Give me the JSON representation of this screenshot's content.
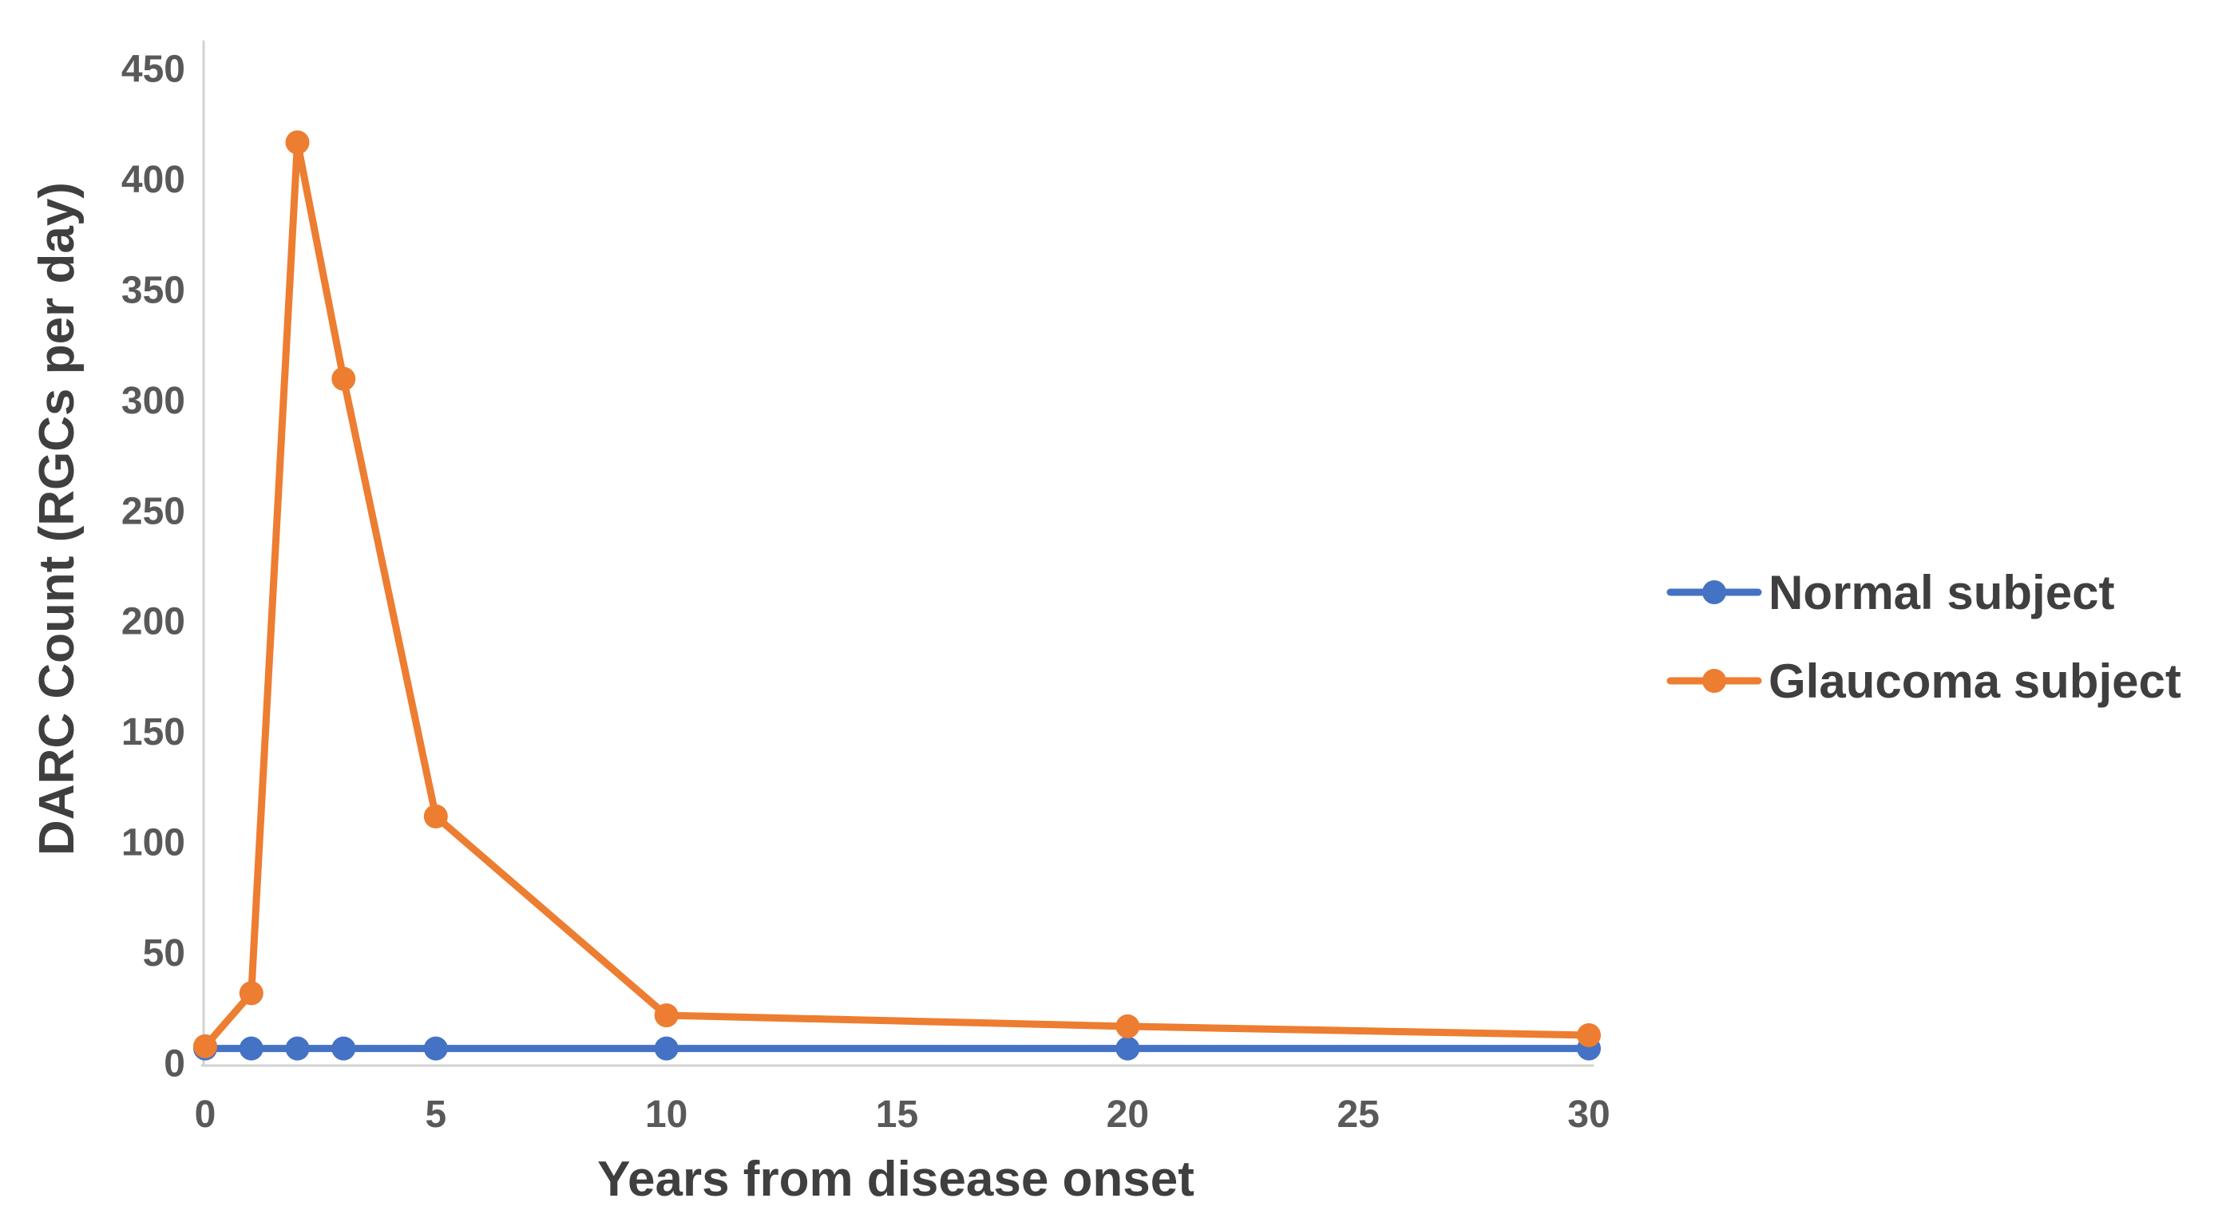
{
  "chart_data": {
    "type": "line",
    "x": [
      0,
      1,
      2,
      3,
      5,
      10,
      20,
      30
    ],
    "series": [
      {
        "name": "Normal subject",
        "color": "#4472C4",
        "values": [
          7,
          7,
          7,
          7,
          7,
          7,
          7,
          7
        ]
      },
      {
        "name": "Glaucoma subject",
        "color": "#ED7D31",
        "values": [
          8,
          32,
          417,
          310,
          112,
          22,
          17,
          13
        ]
      }
    ],
    "title": "",
    "xlabel": "Years from disease onset",
    "ylabel": "DARC Count (RGCs per day)",
    "xlim": [
      0,
      30
    ],
    "ylim": [
      0,
      450
    ],
    "xticks": [
      0,
      5,
      10,
      15,
      20,
      25,
      30
    ],
    "yticks": [
      0,
      50,
      100,
      150,
      200,
      250,
      300,
      350,
      400,
      450
    ],
    "grid": false,
    "legend_position": "right",
    "marker": "circle"
  },
  "colors": {
    "background": "#FFFFFF",
    "axis_line": "#D2D2D2",
    "tick_text": "#595959",
    "title_text": "#3F3F3F",
    "normal_series": "#4472C4",
    "glaucoma_series": "#ED7D31"
  }
}
